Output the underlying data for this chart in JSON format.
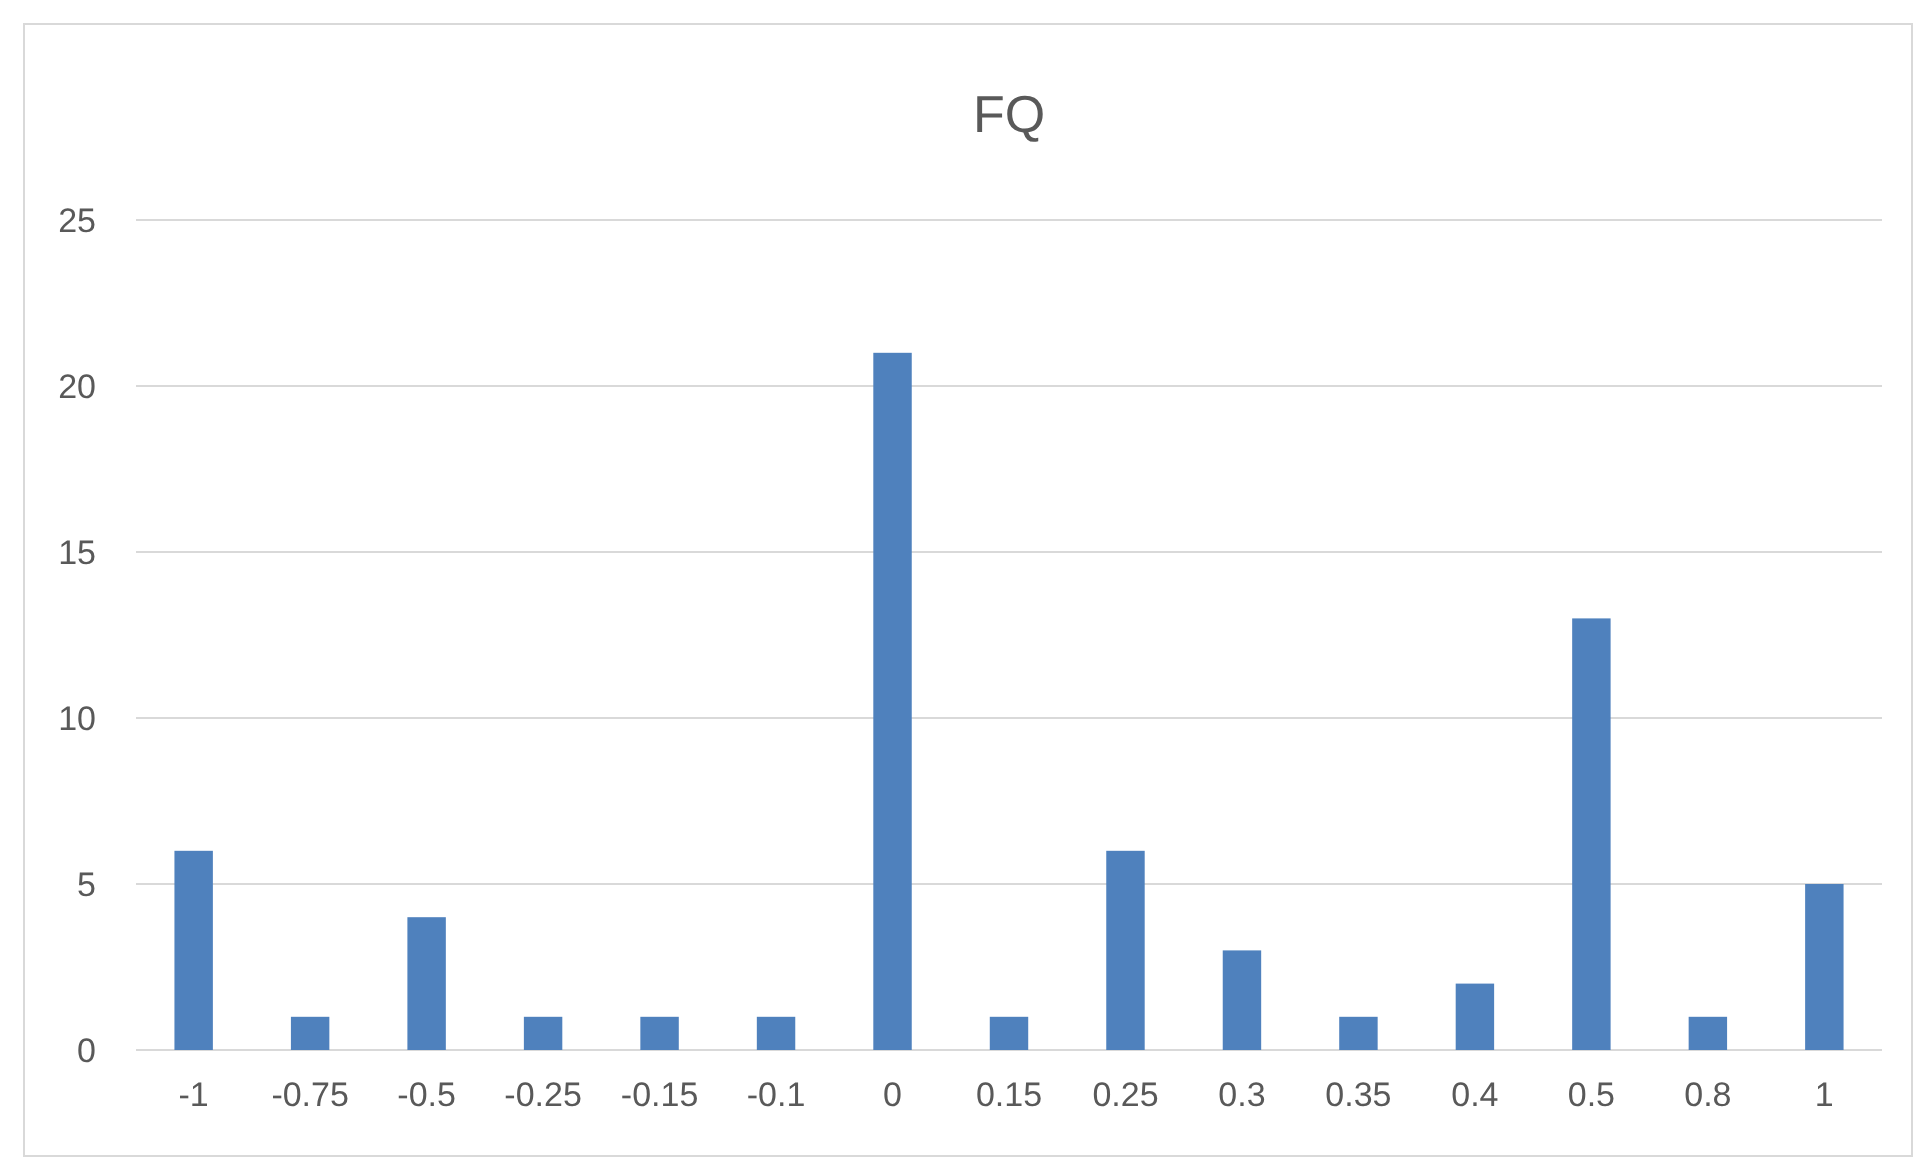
{
  "chart_data": {
    "type": "bar",
    "title": "FQ",
    "categories": [
      "-1",
      "-0.75",
      "-0.5",
      "-0.25",
      "-0.15",
      "-0.1",
      "0",
      "0.15",
      "0.25",
      "0.3",
      "0.35",
      "0.4",
      "0.5",
      "0.8",
      "1"
    ],
    "values": [
      6,
      1,
      4,
      1,
      1,
      1,
      21,
      1,
      6,
      3,
      1,
      2,
      13,
      1,
      5
    ],
    "color": "#4f81bd",
    "ylim": [
      0,
      25
    ],
    "yticks": [
      0,
      5,
      10,
      15,
      20,
      25
    ],
    "grid": "y"
  }
}
